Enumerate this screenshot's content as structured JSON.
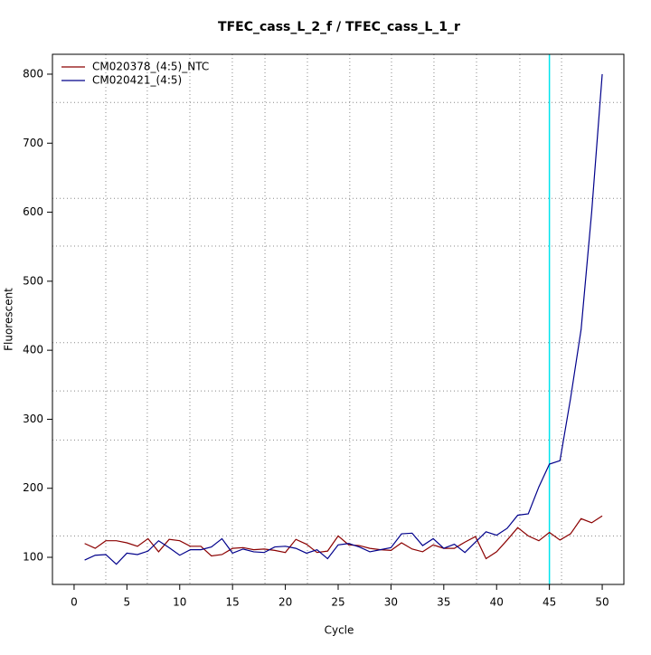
{
  "chart_data": {
    "type": "line",
    "title": "TFEC_cass_L_2_f / TFEC_cass_L_1_r",
    "x_label": "Cycle",
    "y_label": "Fluorescent",
    "x": [
      1,
      2,
      3,
      4,
      5,
      6,
      7,
      8,
      9,
      10,
      11,
      12,
      13,
      14,
      15,
      16,
      17,
      18,
      19,
      20,
      21,
      22,
      23,
      24,
      25,
      26,
      27,
      28,
      29,
      30,
      31,
      32,
      33,
      34,
      35,
      36,
      37,
      38,
      39,
      40,
      41,
      42,
      43,
      44,
      45,
      46,
      47,
      48,
      49,
      50
    ],
    "series": [
      {
        "name": "CM020378_(4:5)_NTC",
        "color": "#8b0000",
        "values": [
          120,
          113,
          124,
          124,
          121,
          116,
          127,
          108,
          126,
          124,
          116,
          116,
          102,
          104,
          113,
          114,
          111,
          112,
          110,
          107,
          126,
          119,
          107,
          109,
          131,
          118,
          117,
          113,
          111,
          110,
          121,
          112,
          108,
          118,
          113,
          113,
          122,
          130,
          98,
          108,
          125,
          143,
          131,
          124,
          136,
          125,
          134,
          156,
          150,
          160
        ]
      },
      {
        "name": "CM020421_(4:5)",
        "color": "#00008b",
        "values": [
          96,
          103,
          104,
          90,
          106,
          104,
          109,
          124,
          114,
          103,
          111,
          111,
          115,
          127,
          106,
          112,
          108,
          107,
          115,
          116,
          113,
          106,
          111,
          98,
          118,
          120,
          115,
          108,
          111,
          114,
          134,
          135,
          117,
          127,
          113,
          119,
          107,
          122,
          137,
          132,
          142,
          161,
          163,
          202,
          235,
          240,
          330,
          430,
          600,
          800
        ]
      }
    ],
    "xlim": [
      -2.05,
      52.05
    ],
    "ylim": [
      60.7,
      828.8
    ],
    "xticks": [
      0,
      5,
      10,
      15,
      20,
      25,
      30,
      35,
      40,
      45,
      50
    ],
    "yticks": [
      100,
      200,
      300,
      400,
      500,
      600,
      700,
      800
    ],
    "xgrid": [
      3,
      6.93,
      10.96,
      14.98,
      18.07,
      22.09,
      26.1,
      30.05,
      34.07,
      38.1,
      42.2,
      46.15
    ],
    "ygrid": [
      131,
      270,
      341,
      411,
      551,
      620,
      759
    ],
    "threshold_x": 45,
    "threshold_color": "#00e5ee",
    "legend": "top-left"
  }
}
